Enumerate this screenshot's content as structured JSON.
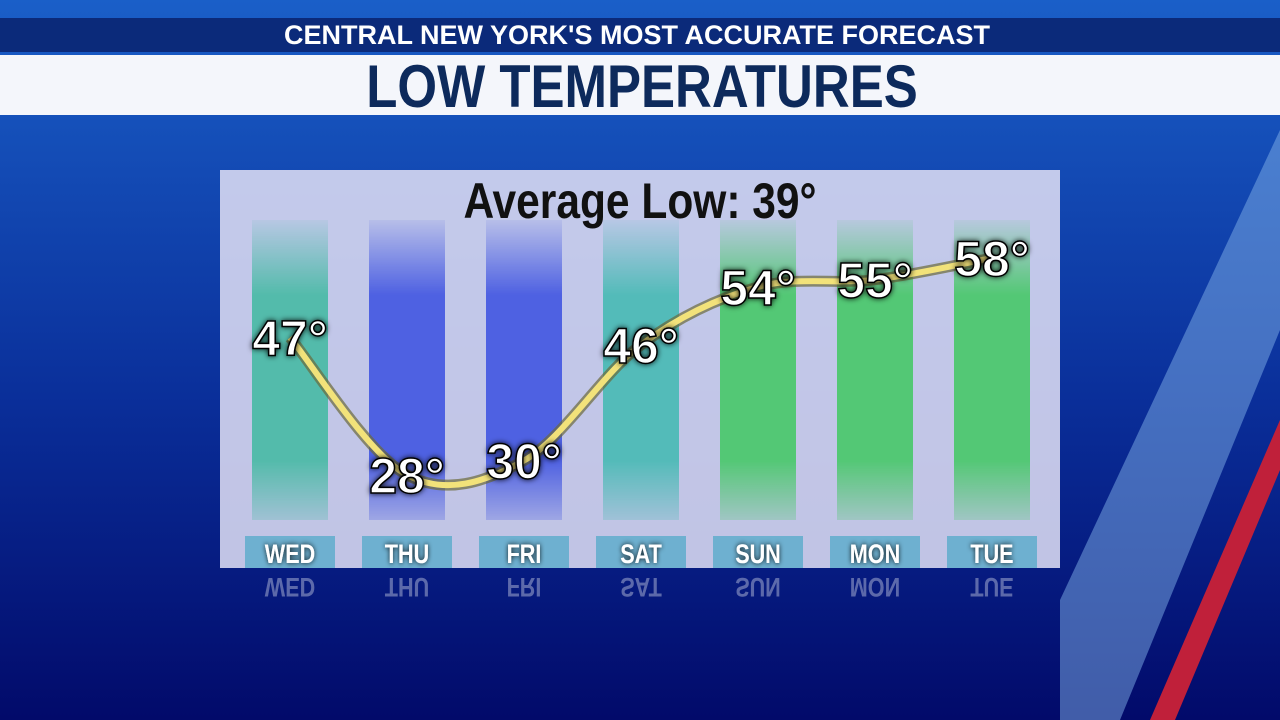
{
  "header": "CENTRAL NEW YORK'S MOST ACCURATE FORECAST",
  "chart_data": {
    "type": "line",
    "title": "LOW TEMPERATURES",
    "subtitle": "Average Low: 39°",
    "categories": [
      "WED",
      "THU",
      "FRI",
      "SAT",
      "SUN",
      "MON",
      "TUE"
    ],
    "values": [
      47,
      28,
      30,
      46,
      54,
      55,
      58
    ],
    "value_labels": [
      "47°",
      "28°",
      "30°",
      "46°",
      "54°",
      "55°",
      "58°"
    ],
    "colors": [
      "#3fb8a0",
      "#3a4fe0",
      "#3a4fe0",
      "#3fb8b0",
      "#3fc860",
      "#3fc860",
      "#3fc860"
    ],
    "color": "#f2e27a"
  }
}
